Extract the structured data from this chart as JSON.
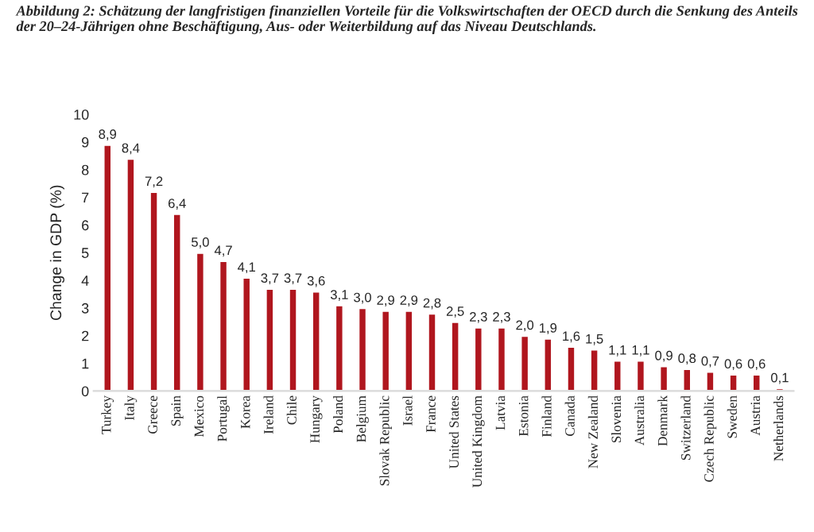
{
  "chart_data": {
    "type": "bar",
    "title": "Abbildung 2: Schätzung der langfristigen finanziellen Vorteile für die Volkswirtschaften der OECD durch die Senkung des Anteils der 20–24-Jährigen ohne Beschäftigung, Aus- oder Weiterbildung auf das Niveau Deutschlands.",
    "ylabel": "Change in GDP (%)",
    "categories": [
      "Turkey",
      "Italy",
      "Greece",
      "Spain",
      "Mexico",
      "Portugal",
      "Korea",
      "Ireland",
      "Chile",
      "Hungary",
      "Poland",
      "Belgium",
      "Slovak Republic",
      "Israel",
      "France",
      "United States",
      "United Kingdom",
      "Latvia",
      "Estonia",
      "Finland",
      "Canada",
      "New Zealand",
      "Slovenia",
      "Australia",
      "Denmark",
      "Switzerland",
      "Czech Republic",
      "Sweden",
      "Austria",
      "Netherlands"
    ],
    "values": [
      8.9,
      8.4,
      7.2,
      6.4,
      5.0,
      4.7,
      4.1,
      3.7,
      3.7,
      3.6,
      3.1,
      3.0,
      2.9,
      2.9,
      2.8,
      2.5,
      2.3,
      2.3,
      2.0,
      1.9,
      1.6,
      1.5,
      1.1,
      1.1,
      0.9,
      0.8,
      0.7,
      0.6,
      0.6,
      0.1
    ],
    "value_labels": [
      "8,9",
      "8,4",
      "7,2",
      "6,4",
      "5,0",
      "4,7",
      "4,1",
      "3,7",
      "3,7",
      "3,6",
      "3,1",
      "3,0",
      "2,9",
      "2,9",
      "2,8",
      "2,5",
      "2,3",
      "2,3",
      "2,0",
      "1,9",
      "1,6",
      "1,5",
      "1,1",
      "1,1",
      "0,9",
      "0,8",
      "0,7",
      "0,6",
      "0,6",
      "0,1"
    ],
    "color": "#b0161e",
    "ylim": [
      0,
      10
    ],
    "yticks": [
      0,
      1,
      2,
      3,
      4,
      5,
      6,
      7,
      8,
      9,
      10
    ]
  }
}
